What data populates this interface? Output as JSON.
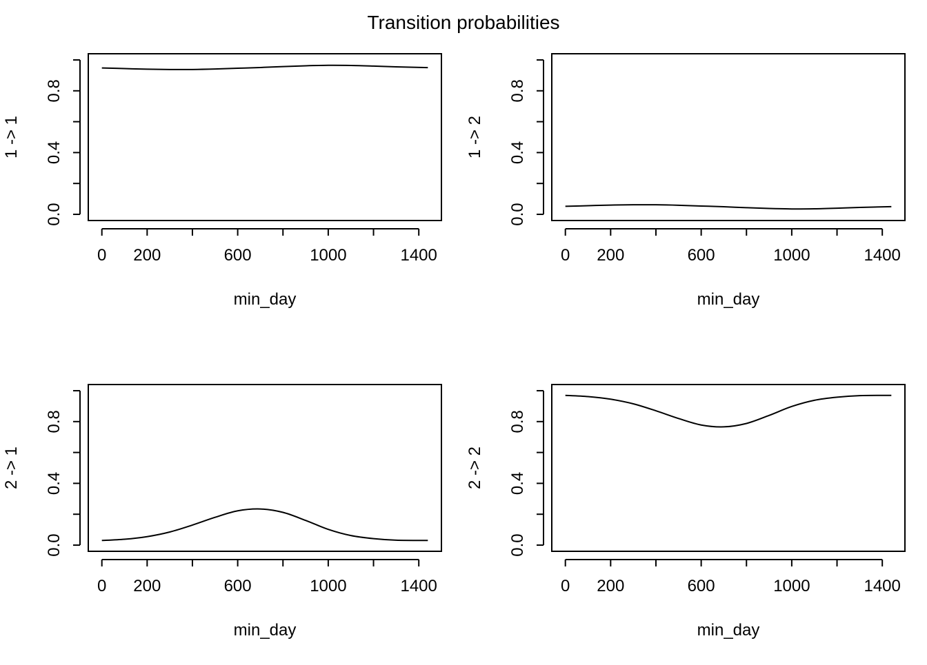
{
  "title": "Transition probabilities",
  "chart_data": [
    {
      "type": "line",
      "title": "",
      "xlabel": "min_day",
      "ylabel": "1 -> 1",
      "xlim": [
        -60,
        1500
      ],
      "ylim": [
        -0.04,
        1.04
      ],
      "xticks": [
        0,
        200,
        400,
        600,
        800,
        1000,
        1200,
        1400
      ],
      "xtick_labels": [
        "0",
        "200",
        "",
        "600",
        "",
        "1000",
        "",
        "1400"
      ],
      "yticks": [
        0.0,
        0.2,
        0.4,
        0.6,
        0.8,
        1.0
      ],
      "ytick_labels": [
        "0.0",
        "",
        "0.4",
        "",
        "0.8",
        ""
      ],
      "series": [
        {
          "x": [
            0,
            100,
            200,
            300,
            400,
            500,
            600,
            700,
            800,
            900,
            1000,
            1100,
            1200,
            1300,
            1440
          ],
          "y": [
            0.948,
            0.944,
            0.94,
            0.938,
            0.938,
            0.941,
            0.946,
            0.951,
            0.957,
            0.962,
            0.965,
            0.964,
            0.96,
            0.955,
            0.95
          ]
        }
      ]
    },
    {
      "type": "line",
      "title": "",
      "xlabel": "min_day",
      "ylabel": "1 -> 2",
      "xlim": [
        -60,
        1500
      ],
      "ylim": [
        -0.04,
        1.04
      ],
      "xticks": [
        0,
        200,
        400,
        600,
        800,
        1000,
        1200,
        1400
      ],
      "xtick_labels": [
        "0",
        "200",
        "",
        "600",
        "",
        "1000",
        "",
        "1400"
      ],
      "yticks": [
        0.0,
        0.2,
        0.4,
        0.6,
        0.8,
        1.0
      ],
      "ytick_labels": [
        "0.0",
        "",
        "0.4",
        "",
        "0.8",
        ""
      ],
      "series": [
        {
          "x": [
            0,
            100,
            200,
            300,
            400,
            500,
            600,
            700,
            800,
            900,
            1000,
            1100,
            1200,
            1300,
            1440
          ],
          "y": [
            0.052,
            0.056,
            0.06,
            0.062,
            0.062,
            0.059,
            0.054,
            0.049,
            0.043,
            0.038,
            0.035,
            0.036,
            0.04,
            0.045,
            0.05
          ]
        }
      ]
    },
    {
      "type": "line",
      "title": "",
      "xlabel": "min_day",
      "ylabel": "2 -> 1",
      "xlim": [
        -60,
        1500
      ],
      "ylim": [
        -0.04,
        1.04
      ],
      "xticks": [
        0,
        200,
        400,
        600,
        800,
        1000,
        1200,
        1400
      ],
      "xtick_labels": [
        "0",
        "200",
        "",
        "600",
        "",
        "1000",
        "",
        "1400"
      ],
      "yticks": [
        0.0,
        0.2,
        0.4,
        0.6,
        0.8,
        1.0
      ],
      "ytick_labels": [
        "0.0",
        "",
        "0.4",
        "",
        "0.8",
        ""
      ],
      "series": [
        {
          "x": [
            0,
            100,
            200,
            300,
            400,
            500,
            600,
            700,
            800,
            900,
            1000,
            1100,
            1200,
            1300,
            1440
          ],
          "y": [
            0.03,
            0.038,
            0.055,
            0.085,
            0.13,
            0.18,
            0.222,
            0.234,
            0.212,
            0.16,
            0.102,
            0.062,
            0.042,
            0.032,
            0.03
          ]
        }
      ]
    },
    {
      "type": "line",
      "title": "",
      "xlabel": "min_day",
      "ylabel": "2 -> 2",
      "xlim": [
        -60,
        1500
      ],
      "ylim": [
        -0.04,
        1.04
      ],
      "xticks": [
        0,
        200,
        400,
        600,
        800,
        1000,
        1200,
        1400
      ],
      "xtick_labels": [
        "0",
        "200",
        "",
        "600",
        "",
        "1000",
        "",
        "1400"
      ],
      "yticks": [
        0.0,
        0.2,
        0.4,
        0.6,
        0.8,
        1.0
      ],
      "ytick_labels": [
        "0.0",
        "",
        "0.4",
        "",
        "0.8",
        ""
      ],
      "series": [
        {
          "x": [
            0,
            100,
            200,
            300,
            400,
            500,
            600,
            700,
            800,
            900,
            1000,
            1100,
            1200,
            1300,
            1440
          ],
          "y": [
            0.97,
            0.962,
            0.945,
            0.915,
            0.87,
            0.82,
            0.778,
            0.766,
            0.788,
            0.84,
            0.898,
            0.938,
            0.958,
            0.968,
            0.97
          ]
        }
      ]
    }
  ]
}
